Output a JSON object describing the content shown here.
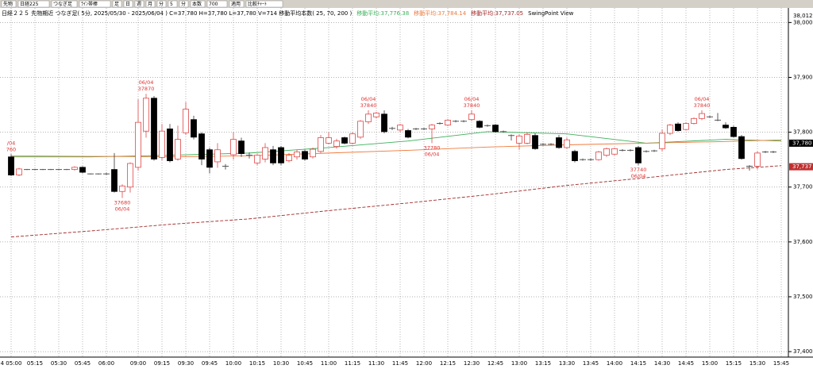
{
  "toolbar": {
    "items": [
      "先物",
      "日経225",
      "つなぎ足",
      "ﾗｲﾝ帯棒",
      "足",
      "日",
      "週",
      "月",
      "分",
      "5",
      "分",
      "本数",
      "700",
      "適用",
      "比較ﾁｬｰﾄ"
    ]
  },
  "chart_data": {
    "type": "candlestick",
    "info": "日経２２５ 先物期近 つなぎ足( 5分, 2025/05/30 - 2025/06/04 ) C=37,780 H=37,780 L=37,780 V=714  移動平均本数( 25, 70, 200 )",
    "swing_label": "SwingPoint View",
    "candles": [
      [
        37755,
        37760,
        37720,
        37722
      ],
      [
        37722,
        37735,
        37720,
        37733
      ],
      [
        37732,
        37733,
        37731,
        37732
      ],
      [
        37732,
        37733,
        37731,
        37732
      ],
      [
        37732,
        37733,
        37731,
        37732
      ],
      [
        37732,
        37733,
        37731,
        37732
      ],
      [
        37732,
        37733,
        37731,
        37732
      ],
      [
        37732,
        37733,
        37731,
        37732
      ],
      [
        37732,
        37738,
        37730,
        37736
      ],
      [
        37736,
        37738,
        37725,
        37727
      ],
      [
        37724,
        37725,
        37723,
        37724
      ],
      [
        37724,
        37725,
        37723,
        37724
      ],
      [
        37724,
        37726,
        37722,
        37724
      ],
      [
        37732,
        37762,
        37690,
        37692
      ],
      [
        37692,
        37705,
        37680,
        37702
      ],
      [
        37700,
        37745,
        37690,
        37743
      ],
      [
        37736,
        37860,
        37730,
        37818
      ],
      [
        37802,
        37870,
        37790,
        37862
      ],
      [
        37862,
        37866,
        37748,
        37751
      ],
      [
        37754,
        37815,
        37749,
        37802
      ],
      [
        37806,
        37815,
        37745,
        37748
      ],
      [
        37751,
        37812,
        37748,
        37787
      ],
      [
        37799,
        37855,
        37795,
        37842
      ],
      [
        37823,
        37830,
        37787,
        37791
      ],
      [
        37797,
        37800,
        37740,
        37751
      ],
      [
        37768,
        37772,
        37725,
        37736
      ],
      [
        37746,
        37780,
        37735,
        37768
      ],
      [
        37738,
        37742,
        37732,
        37738
      ],
      [
        37759,
        37800,
        37750,
        37787
      ],
      [
        37784,
        37790,
        37755,
        37761
      ],
      [
        37758,
        37763,
        37752,
        37758
      ],
      [
        37744,
        37760,
        37740,
        37758
      ],
      [
        37751,
        37780,
        37745,
        37772
      ],
      [
        37768,
        37775,
        37740,
        37744
      ],
      [
        37772,
        37775,
        37740,
        37744
      ],
      [
        37748,
        37762,
        37745,
        37758
      ],
      [
        37755,
        37768,
        37750,
        37764
      ],
      [
        37765,
        37768,
        37748,
        37751
      ],
      [
        37755,
        37772,
        37752,
        37769
      ],
      [
        37765,
        37795,
        37762,
        37790
      ],
      [
        37780,
        37800,
        37778,
        37790
      ],
      [
        37774,
        37788,
        37770,
        37784
      ],
      [
        37790,
        37792,
        37778,
        37780
      ],
      [
        37780,
        37800,
        37778,
        37797
      ],
      [
        37791,
        37822,
        37788,
        37820
      ],
      [
        37819,
        37840,
        37815,
        37833
      ],
      [
        37828,
        37837,
        37825,
        37835
      ],
      [
        37833,
        37840,
        37798,
        37801
      ],
      [
        37807,
        37810,
        37804,
        37807
      ],
      [
        37804,
        37815,
        37800,
        37813
      ],
      [
        37803,
        37806,
        37789,
        37791
      ],
      [
        37806,
        37808,
        37804,
        37806
      ],
      [
        37806,
        37808,
        37804,
        37806
      ],
      [
        37806,
        37815,
        37780,
        37813
      ],
      [
        37816,
        37818,
        37814,
        37816
      ],
      [
        37813,
        37824,
        37811,
        37822
      ],
      [
        37820,
        37822,
        37818,
        37820
      ],
      [
        37820,
        37822,
        37818,
        37820
      ],
      [
        37823,
        37840,
        37820,
        37833
      ],
      [
        37820,
        37822,
        37807,
        37809
      ],
      [
        37812,
        37814,
        37810,
        37812
      ],
      [
        37813,
        37815,
        37799,
        37801
      ],
      [
        37801,
        37803,
        37799,
        37801
      ],
      [
        37794,
        37796,
        37785,
        37794
      ],
      [
        37780,
        37796,
        37768,
        37793
      ],
      [
        37780,
        37800,
        37778,
        37796
      ],
      [
        37794,
        37798,
        37768,
        37770
      ],
      [
        37778,
        37780,
        37776,
        37778
      ],
      [
        37778,
        37780,
        37776,
        37778
      ],
      [
        37790,
        37795,
        37770,
        37772
      ],
      [
        37772,
        37790,
        37770,
        37786
      ],
      [
        37765,
        37768,
        37745,
        37748
      ],
      [
        37750,
        37752,
        37748,
        37750
      ],
      [
        37750,
        37752,
        37748,
        37750
      ],
      [
        37750,
        37766,
        37748,
        37764
      ],
      [
        37758,
        37772,
        37755,
        37770
      ],
      [
        37760,
        37772,
        37758,
        37770
      ],
      [
        37767,
        37769,
        37765,
        37767
      ],
      [
        37767,
        37769,
        37765,
        37767
      ],
      [
        37772,
        37775,
        37740,
        37744
      ],
      [
        37765,
        37767,
        37763,
        37765
      ],
      [
        37766,
        37768,
        37764,
        37766
      ],
      [
        37770,
        37805,
        37765,
        37798
      ],
      [
        37798,
        37815,
        37795,
        37813
      ],
      [
        37815,
        37818,
        37801,
        37803
      ],
      [
        37805,
        37818,
        37803,
        37816
      ],
      [
        37816,
        37827,
        37814,
        37825
      ],
      [
        37825,
        37840,
        37822,
        37834
      ],
      [
        37828,
        37830,
        37826,
        37828
      ],
      [
        37822,
        37835,
        37820,
        37822
      ],
      [
        37813,
        37818,
        37806,
        37808
      ],
      [
        37809,
        37812,
        37790,
        37792
      ],
      [
        37792,
        37795,
        37750,
        37752
      ],
      [
        37738,
        37740,
        37730,
        37738
      ],
      [
        37738,
        37765,
        37732,
        37762
      ],
      [
        37764,
        37766,
        37762,
        37764
      ],
      [
        37764,
        37766,
        37762,
        37764
      ]
    ],
    "up_color": "#e04848",
    "down_color": "#000000",
    "ma_x": [
      0,
      10,
      20,
      30,
      40,
      50,
      60,
      70,
      80,
      90,
      97
    ],
    "series": [
      {
        "name": "移動平均:37,776.38",
        "color": "#3cb05a",
        "dash": false,
        "values": [
          37755,
          37755,
          37758,
          37762,
          37772,
          37784,
          37801,
          37797,
          37780,
          37787,
          37784
        ]
      },
      {
        "name": "移動平均:37,784.14",
        "color": "#f07a3c",
        "dash": false,
        "values": [
          37757,
          37756,
          37755,
          37757,
          37762,
          37767,
          37773,
          37777,
          37780,
          37783,
          37786
        ]
      },
      {
        "name": "移動平均:37,737.05",
        "color": "#a02828",
        "dash": true,
        "values": [
          37609,
          37620,
          37632,
          37642,
          37657,
          37671,
          37686,
          37703,
          37717,
          37732,
          37739
        ]
      }
    ],
    "annotations": [
      {
        "candle": 0,
        "above": true,
        "lines": [
          "/04",
          "760"
        ]
      },
      {
        "candle": 17,
        "above": true,
        "lines": [
          "06/04",
          "37870"
        ]
      },
      {
        "candle": 45,
        "above": true,
        "lines": [
          "06/04",
          "37840"
        ]
      },
      {
        "candle": 58,
        "above": true,
        "lines": [
          "06/04",
          "37840"
        ]
      },
      {
        "candle": 87,
        "above": true,
        "lines": [
          "06/04",
          "37840"
        ]
      },
      {
        "candle": 14,
        "above": false,
        "lines": [
          "37680",
          "06/04"
        ]
      },
      {
        "candle": 53,
        "above": false,
        "lines": [
          "37780",
          "06/04"
        ]
      },
      {
        "candle": 79,
        "above": false,
        "lines": [
          "37740",
          "06/04"
        ]
      }
    ],
    "price_tags": [
      {
        "value": 37780,
        "label": "37,780",
        "color": "#000000"
      },
      {
        "value": 37737.05,
        "label": "37,737",
        "color": "#c03030"
      }
    ],
    "top_label": {
      "value": 38012,
      "label": "38,012"
    },
    "ylim": [
      37390,
      38015
    ],
    "yticks": [
      {
        "value": 37400,
        "label": "37,400"
      },
      {
        "value": 37500,
        "label": "37,500"
      },
      {
        "value": 37600,
        "label": "37,600"
      },
      {
        "value": 37700,
        "label": "37,700"
      },
      {
        "value": 37800,
        "label": "37,800"
      },
      {
        "value": 37900,
        "label": "37,900"
      },
      {
        "value": 38000,
        "label": "38,000"
      }
    ],
    "xticks": [
      {
        "value": 0,
        "label": "4 05:00"
      },
      {
        "value": 3,
        "label": "05:15"
      },
      {
        "value": 6,
        "label": "05:30"
      },
      {
        "value": 9,
        "label": "05:45"
      },
      {
        "value": 12,
        "label": "06:00"
      },
      {
        "value": 16,
        "label": "09:00"
      },
      {
        "value": 19,
        "label": "09:15"
      },
      {
        "value": 22,
        "label": "09:30"
      },
      {
        "value": 25,
        "label": "09:45"
      },
      {
        "value": 28,
        "label": "10:00"
      },
      {
        "value": 31,
        "label": "10:15"
      },
      {
        "value": 34,
        "label": "10:30"
      },
      {
        "value": 37,
        "label": "10:45"
      },
      {
        "value": 40,
        "label": "11:00"
      },
      {
        "value": 43,
        "label": "11:15"
      },
      {
        "value": 46,
        "label": "11:30"
      },
      {
        "value": 49,
        "label": "11:45"
      },
      {
        "value": 52,
        "label": "12:00"
      },
      {
        "value": 55,
        "label": "12:15"
      },
      {
        "value": 58,
        "label": "12:30"
      },
      {
        "value": 61,
        "label": "12:45"
      },
      {
        "value": 64,
        "label": "13:00"
      },
      {
        "value": 67,
        "label": "13:15"
      },
      {
        "value": 70,
        "label": "13:30"
      },
      {
        "value": 73,
        "label": "13:45"
      },
      {
        "value": 76,
        "label": "14:00"
      },
      {
        "value": 79,
        "label": "14:15"
      },
      {
        "value": 82,
        "label": "14:30"
      },
      {
        "value": 85,
        "label": "14:45"
      },
      {
        "value": 88,
        "label": "15:00"
      },
      {
        "value": 91,
        "label": "15:15"
      },
      {
        "value": 94,
        "label": "15:30"
      },
      {
        "value": 97,
        "label": "15:45"
      }
    ],
    "grid": true
  }
}
